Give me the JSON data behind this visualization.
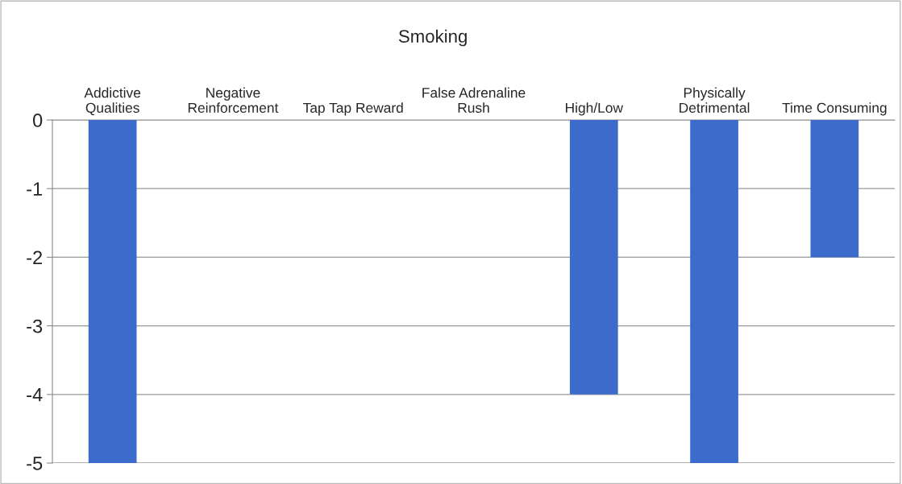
{
  "chart_data": {
    "type": "bar",
    "title": "Smoking",
    "categories": [
      "Addictive\nQualities",
      "Negative\nReinforcement",
      "Tap Tap Reward",
      "False Adrenaline\nRush",
      "High/Low",
      "Physically\nDetrimental",
      "Time Consuming"
    ],
    "values": [
      -5,
      0,
      0,
      0,
      -4,
      -5,
      -2
    ],
    "color": "#3d6bcc",
    "ylim": [
      -5,
      0
    ],
    "yticks": [
      0,
      -1,
      -2,
      -3,
      -4,
      -5
    ],
    "grid": "y"
  }
}
